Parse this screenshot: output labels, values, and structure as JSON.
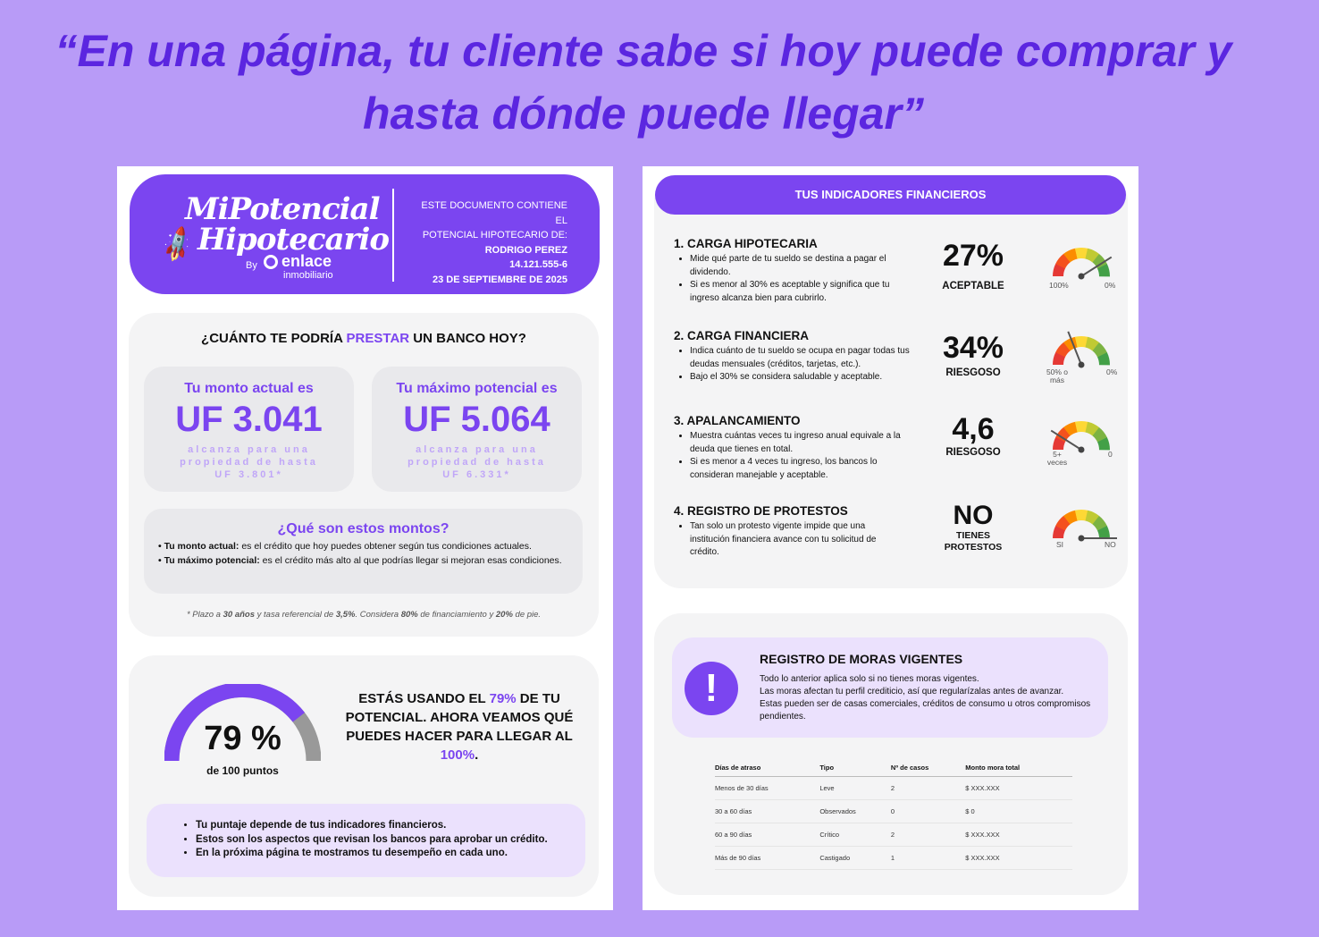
{
  "headline": {
    "line1": "“En una página, tu cliente sabe si hoy puede comprar y",
    "line2": "hasta dónde puede llegar”"
  },
  "page1": {
    "header": {
      "logo_line1": "MiPotencial",
      "logo_line2": "Hipotecario",
      "by": "By",
      "brand": "enlace",
      "brand_sub": "inmobiliario",
      "info_line1": "ESTE DOCUMENTO CONTIENE EL",
      "info_line2": "POTENCIAL HIPOTECARIO DE:",
      "name": "RODRIGO PEREZ",
      "rut": "14.121.555-6",
      "date": "23 DE SEPTIEMBRE DE 2025"
    },
    "loan_card": {
      "question_pre": "¿CUÁNTO TE PODRÍA ",
      "question_hl": "PRESTAR",
      "question_post": " UN BANCO HOY?",
      "current": {
        "label": "Tu monto actual es",
        "value": "UF 3.041",
        "sub": "alcanza para una propiedad de hasta UF 3.801*"
      },
      "max": {
        "label": "Tu máximo potencial es",
        "value": "UF 5.064",
        "sub": "alcanza para una propiedad de hasta UF 6.331*"
      },
      "explain": {
        "title": "¿Qué son estos montos?",
        "item1_bold": "• Tu monto actual:",
        "item1_text": " es el crédito que hoy puedes obtener según tus condiciones actuales.",
        "item2_bold": "• Tu máximo potencial:",
        "item2_text": " es el crédito más alto al que podrías llegar si mejoran esas condiciones."
      },
      "footnote": {
        "a": "* Plazo a ",
        "b": "30 años",
        "c": " y tasa referencial de ",
        "d": "3,5%",
        "e": ". Considera ",
        "f": "80%",
        "g": " de financiamiento y ",
        "h": "20%",
        "i": " de pie."
      }
    },
    "score_card": {
      "score_percent": 79,
      "score_label": "79 %",
      "score_sub": "de 100 puntos",
      "msg_a": "ESTÁS USANDO EL ",
      "msg_b": "79%",
      "msg_c": " DE TU POTENCIAL. AHORA VEAMOS QUÉ PUEDES HACER PARA LLEGAR AL ",
      "msg_d": "100%",
      "msg_e": ".",
      "bullets": [
        "Tu puntaje depende de tus indicadores financieros.",
        "Estos son los aspectos que revisan los bancos para aprobar un crédito.",
        "En la próxima página te mostramos tu desempeño en cada uno."
      ]
    }
  },
  "page2": {
    "indicators_title": "TUS INDICADORES FINANCIEROS",
    "indicators": [
      {
        "title": "1. CARGA HIPOTECARIA",
        "bullets": [
          "Mide qué parte de tu sueldo se destina a pagar el dividendo.",
          "Si es menor al 30% es aceptable y significa que tu ingreso alcanza bien para cubrirlo."
        ],
        "value": "27%",
        "status": "ACEPTABLE",
        "gauge_left": "100%",
        "gauge_right": "0%",
        "needle_level": 0.82
      },
      {
        "title": "2. CARGA FINANCIERA",
        "bullets": [
          "Indica cuánto de tu sueldo se ocupa en pagar todas tus deudas mensuales (créditos, tarjetas, etc.).",
          "Bajo el 30% se considera saludable y aceptable."
        ],
        "value": "34%",
        "status": "RIESGOSO",
        "gauge_left": "50% o más",
        "gauge_right": "0%",
        "needle_level": 0.38
      },
      {
        "title": "3. APALANCAMIENTO",
        "bullets": [
          "Muestra cuántas veces tu ingreso anual equivale a la deuda que tienes en total.",
          "Si es menor a 4 veces tu ingreso, los bancos lo consideran manejable y aceptable."
        ],
        "value": "4,6",
        "status": "RIESGOSO",
        "gauge_left": "5+ veces",
        "gauge_right": "0",
        "needle_level": 0.18
      },
      {
        "title": "4. REGISTRO DE PROTESTOS",
        "bullets": [
          "Tan solo un protesto vigente impide que una institución financiera avance con tu solicitud de crédito."
        ],
        "value": "NO",
        "status": "TIENES PROTESTOS",
        "gauge_left": "SI",
        "gauge_right": "NO",
        "needle_level": 1.0
      }
    ],
    "moras": {
      "title": "REGISTRO DE MORAS VIGENTES",
      "lines": [
        "Todo lo anterior aplica solo si no tienes moras vigentes.",
        "Las moras afectan tu perfil crediticio, así que regularízalas antes de avanzar.",
        "Estas pueden ser de casas comerciales, créditos de consumo u otros compromisos pendientes."
      ],
      "columns": [
        "Días de atraso",
        "Tipo",
        "Nº de casos",
        "Monto mora total"
      ],
      "rows": [
        [
          "Menos de 30 días",
          "Leve",
          "2",
          "$ XXX.XXX"
        ],
        [
          "30 a 60 días",
          "Observados",
          "0",
          "$ 0"
        ],
        [
          "60 a 90 días",
          "Crítico",
          "2",
          "$ XXX.XXX"
        ],
        [
          "Más de 90 días",
          "Castigado",
          "1",
          "$ XXX.XXX"
        ]
      ]
    }
  },
  "colors": {
    "background": "#b89bf7",
    "accent": "#7b45f0",
    "accent_light": "#ebe1fd",
    "card": "#f4f4f5"
  }
}
